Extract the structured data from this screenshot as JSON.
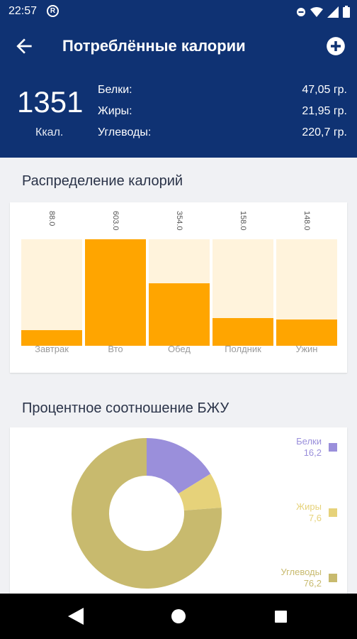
{
  "status": {
    "time": "22:57"
  },
  "app_bar": {
    "title": "Потреблённые калории"
  },
  "summary": {
    "kcal_value": "1351",
    "kcal_unit": "Ккал.",
    "macros": [
      {
        "label": "Белки:",
        "value": "47,05 гр."
      },
      {
        "label": "Жиры:",
        "value": "21,95 гр."
      },
      {
        "label": "Углеводы:",
        "value": "220,7 гр."
      }
    ]
  },
  "bar_section": {
    "title": "Распределение калорий"
  },
  "pie_section": {
    "title": "Процентное соотношение БЖУ"
  },
  "chart_data": [
    {
      "type": "bar",
      "categories": [
        "Завтрак",
        "Вто",
        "Обед",
        "Полдник",
        "Ужин"
      ],
      "values": [
        88.0,
        603.0,
        354.0,
        158.0,
        148.0
      ],
      "value_labels": [
        "88.0",
        "603.0",
        "354.0",
        "158.0",
        "148.0"
      ],
      "ylim": [
        0,
        603.0
      ],
      "fill_color": "#ffa500",
      "background_color": "#fff3dc",
      "grid": false
    },
    {
      "type": "pie",
      "donut": true,
      "legend_position": "right",
      "slices": [
        {
          "label": "Белки",
          "value": 16.2,
          "value_label": "16,2",
          "color": "#9a8fdb"
        },
        {
          "label": "Жиры",
          "value": 7.6,
          "value_label": "7,6",
          "color": "#e6d27a"
        },
        {
          "label": "Углеводы",
          "value": 76.2,
          "value_label": "76,2",
          "color": "#c8ba6e"
        }
      ]
    }
  ],
  "colors": {
    "primary": "#0f3273",
    "background": "#f0f1f4"
  },
  "icons": {
    "back": "arrow-left-icon",
    "add": "add-circle-icon"
  }
}
